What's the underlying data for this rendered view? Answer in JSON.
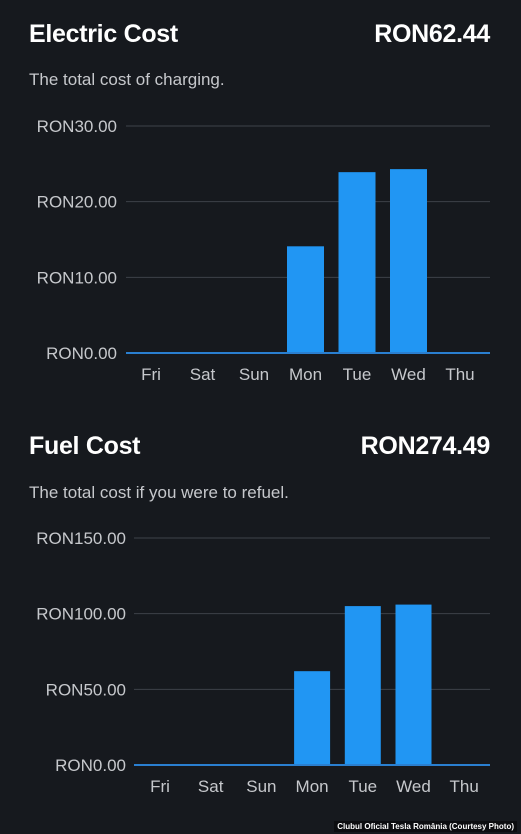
{
  "electric": {
    "title": "Electric Cost",
    "total": "RON62.44",
    "subtitle": "The total cost of charging."
  },
  "fuel": {
    "title": "Fuel Cost",
    "total": "RON274.49",
    "subtitle": "The total cost if you were to refuel."
  },
  "credit": "Clubul Oficial Tesla România (Courtesy Photo)",
  "colors": {
    "bar": "#2196f3",
    "grid": "#3d4249",
    "baseline": "#2a7fd0",
    "label": "#c6c8cc"
  },
  "chart_data": [
    {
      "type": "bar",
      "title": "Electric Cost",
      "categories": [
        "Fri",
        "Sat",
        "Sun",
        "Mon",
        "Tue",
        "Wed",
        "Thu"
      ],
      "values": [
        0,
        0,
        0,
        14.1,
        23.9,
        24.3,
        0
      ],
      "yticks": [
        "RON0.00",
        "RON10.00",
        "RON20.00",
        "RON30.00"
      ],
      "ylim": [
        0,
        30
      ],
      "grid": true
    },
    {
      "type": "bar",
      "title": "Fuel Cost",
      "categories": [
        "Fri",
        "Sat",
        "Sun",
        "Mon",
        "Tue",
        "Wed",
        "Thu"
      ],
      "values": [
        0,
        0,
        0,
        62,
        105,
        106,
        0
      ],
      "yticks": [
        "RON0.00",
        "RON50.00",
        "RON100.00",
        "RON150.00"
      ],
      "ylim": [
        0,
        150
      ],
      "grid": true
    }
  ]
}
